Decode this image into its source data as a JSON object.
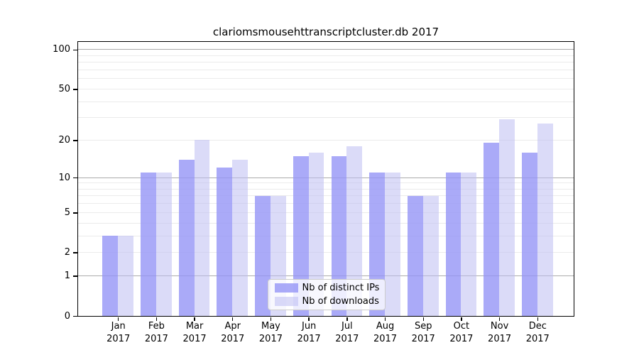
{
  "title": "clariomsmousehttranscriptcluster.db 2017",
  "chart_data": {
    "type": "bar",
    "title": "clariomsmousehttranscriptcluster.db 2017",
    "categories": [
      "Jan",
      "Feb",
      "Mar",
      "Apr",
      "May",
      "Jun",
      "Jul",
      "Aug",
      "Sep",
      "Oct",
      "Nov",
      "Dec"
    ],
    "category_year": "2017",
    "series": [
      {
        "name": "Nb of distinct IPs",
        "color": "#aaaaf8",
        "values": [
          3,
          11,
          14,
          12,
          7,
          15,
          15,
          11,
          7,
          11,
          19,
          16
        ]
      },
      {
        "name": "Nb of downloads",
        "color": "#dbdbf8",
        "values": [
          3,
          11,
          20,
          14,
          7,
          16,
          18,
          11,
          7,
          11,
          29,
          27
        ]
      }
    ],
    "xlabel": "",
    "ylabel": "",
    "yscale": "log1p",
    "ylim": [
      0,
      114
    ],
    "y_tick_values": [
      0,
      1,
      2,
      5,
      10,
      20,
      50,
      100
    ],
    "y_tick_labels": [
      "0",
      "1",
      "2",
      "5",
      "10",
      "20",
      "50",
      "100"
    ],
    "major_gridlines": [
      1,
      10,
      100
    ],
    "minor_gridlines": [
      2,
      3,
      4,
      5,
      6,
      7,
      8,
      9,
      20,
      30,
      40,
      50,
      60,
      70,
      80,
      90
    ],
    "grid": true,
    "legend_position": "lower center",
    "colors": {
      "bar_distinct_ips": "#aaaaf8",
      "bar_downloads": "#dbdbf8",
      "major_grid": "#ababab",
      "minor_grid": "#ebebeb",
      "axis": "#000000"
    }
  }
}
